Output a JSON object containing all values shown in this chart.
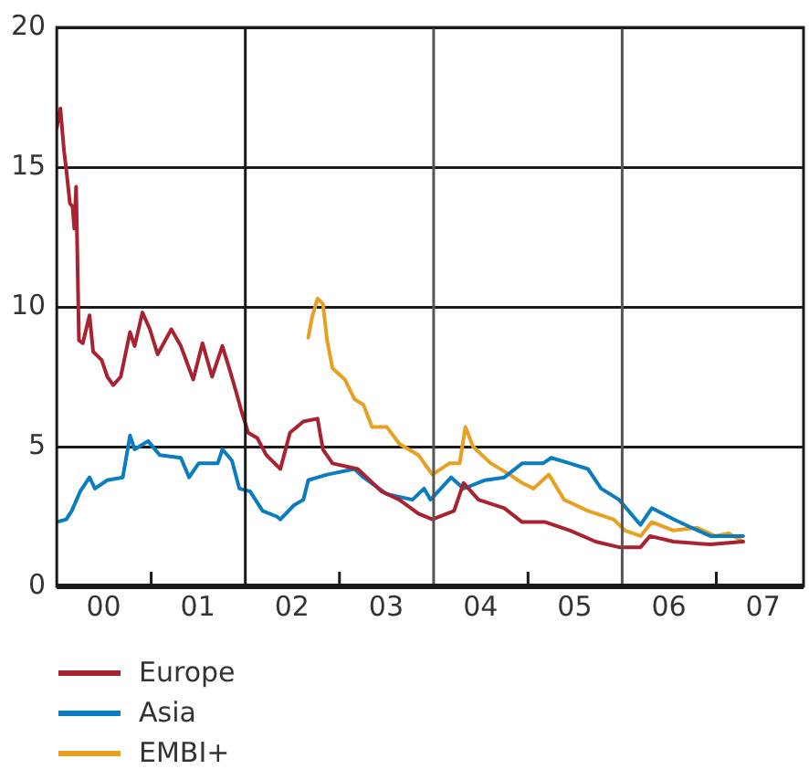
{
  "chart_data": {
    "type": "line",
    "xlim": [
      "2000-01-01",
      "2007-12-05"
    ],
    "xticks": [
      {
        "value": "2000-07-01",
        "label": "00"
      },
      {
        "value": "2001-01-01",
        "label": null
      },
      {
        "value": "2001-07-01",
        "label": "01"
      },
      {
        "value": "2002-07-01",
        "label": "02"
      },
      {
        "value": "2003-01-01",
        "label": null
      },
      {
        "value": "2003-07-01",
        "label": "03"
      },
      {
        "value": "2004-07-01",
        "label": "04"
      },
      {
        "value": "2005-01-01",
        "label": null
      },
      {
        "value": "2005-07-01",
        "label": "05"
      },
      {
        "value": "2006-07-01",
        "label": "06"
      },
      {
        "value": "2007-01-01",
        "label": null
      },
      {
        "value": "2007-07-01",
        "label": "07"
      }
    ],
    "ylim": [
      0,
      20
    ],
    "yticks": [
      0,
      5,
      10,
      15,
      20
    ],
    "grid": "y",
    "legend": "bottom left",
    "marker": "none",
    "line_style": "solid",
    "ref_lines": [
      {
        "axis": "x",
        "value": "2002-01-01",
        "color": "#1a1a1a"
      },
      {
        "axis": "x",
        "value": "2004-01-01",
        "color": "#555555"
      },
      {
        "axis": "x",
        "value": "2006-01-01",
        "color": "#555555"
      }
    ],
    "series": [
      {
        "name": "Europe",
        "color": "#a8232f",
        "x": [
          "2000-01-01",
          "2000-01-15",
          "2000-01-29",
          "2000-02-07",
          "2000-02-21",
          "2000-03-02",
          "2000-03-09",
          "2000-03-16",
          "2000-03-27",
          "2000-04-11",
          "2000-05-07",
          "2000-05-21",
          "2000-06-23",
          "2000-07-15",
          "2000-08-07",
          "2000-09-05",
          "2000-10-11",
          "2000-10-29",
          "2000-11-28",
          "2000-12-27",
          "2001-01-26",
          "2001-03-20",
          "2001-04-26",
          "2001-06-13",
          "2001-07-19",
          "2001-08-25",
          "2001-10-04",
          "2001-11-03",
          "2001-11-25",
          "2001-12-16",
          "2002-01-12",
          "2002-02-17",
          "2002-03-23",
          "2002-05-17",
          "2002-06-23",
          "2002-08-14",
          "2002-10-08",
          "2002-10-29",
          "2002-12-05",
          "2003-03-13",
          "2003-06-13",
          "2003-08-21",
          "2003-11-03",
          "2003-12-27",
          "2004-03-20",
          "2004-04-26",
          "2004-06-23",
          "2004-10-01",
          "2004-12-09",
          "2005-03-09",
          "2005-06-13",
          "2005-09-20",
          "2005-12-20",
          "2006-03-13",
          "2006-04-19",
          "2006-07-19",
          "2006-12-09",
          "2007-04-15"
        ],
        "values": [
          16.4,
          17.1,
          15.6,
          14.9,
          13.7,
          13.6,
          12.8,
          14.3,
          8.8,
          8.7,
          9.7,
          8.4,
          8.1,
          7.5,
          7.2,
          7.5,
          9.1,
          8.6,
          9.8,
          9.2,
          8.3,
          9.2,
          8.6,
          7.4,
          8.7,
          7.5,
          8.6,
          7.7,
          7.0,
          6.3,
          5.5,
          5.3,
          4.7,
          4.2,
          5.5,
          5.9,
          6.0,
          4.9,
          4.4,
          4.2,
          3.4,
          3.1,
          2.6,
          2.4,
          2.7,
          3.7,
          3.1,
          2.8,
          2.3,
          2.3,
          2.0,
          1.6,
          1.4,
          1.4,
          1.8,
          1.6,
          1.5,
          1.6
        ]
      },
      {
        "name": "Asia",
        "color": "#0a7cc1",
        "x": [
          "2000-01-01",
          "2000-02-07",
          "2000-02-28",
          "2000-04-01",
          "2000-05-07",
          "2000-05-28",
          "2000-07-15",
          "2000-09-13",
          "2000-10-11",
          "2000-10-29",
          "2000-12-20",
          "2001-02-03",
          "2001-04-26",
          "2001-05-28",
          "2001-07-04",
          "2001-09-16",
          "2001-10-04",
          "2001-11-10",
          "2001-12-09",
          "2002-01-19",
          "2002-03-09",
          "2002-05-03",
          "2002-05-17",
          "2002-07-08",
          "2002-08-14",
          "2002-09-02",
          "2002-11-14",
          "2003-02-28",
          "2003-04-04",
          "2003-07-04",
          "2003-10-11",
          "2003-11-25",
          "2003-12-20",
          "2004-03-09",
          "2004-04-26",
          "2004-07-19",
          "2004-10-01",
          "2004-12-09",
          "2005-02-28",
          "2005-04-01",
          "2005-06-13",
          "2005-08-21",
          "2005-10-11",
          "2005-12-20",
          "2006-03-13",
          "2006-04-26",
          "2006-07-19",
          "2006-09-27",
          "2006-12-09",
          "2007-04-15"
        ],
        "values": [
          2.3,
          2.4,
          2.7,
          3.4,
          3.9,
          3.5,
          3.8,
          3.9,
          5.4,
          4.9,
          5.2,
          4.7,
          4.6,
          3.9,
          4.4,
          4.4,
          4.9,
          4.5,
          3.5,
          3.4,
          2.7,
          2.5,
          2.4,
          2.9,
          3.1,
          3.8,
          4.0,
          4.2,
          3.9,
          3.3,
          3.1,
          3.5,
          3.1,
          3.9,
          3.5,
          3.8,
          3.9,
          4.4,
          4.4,
          4.6,
          4.4,
          4.2,
          3.5,
          3.1,
          2.2,
          2.8,
          2.4,
          2.1,
          1.8,
          1.8
        ]
      },
      {
        "name": "EMBI+",
        "color": "#e8a021",
        "x": [
          "2002-09-02",
          "2002-09-16",
          "2002-10-08",
          "2002-10-29",
          "2002-11-14",
          "2002-12-05",
          "2003-01-22",
          "2003-02-28",
          "2003-04-04",
          "2003-05-07",
          "2003-07-04",
          "2003-08-21",
          "2003-11-03",
          "2003-12-27",
          "2004-03-02",
          "2004-04-11",
          "2004-05-03",
          "2004-06-02",
          "2004-08-10",
          "2004-10-22",
          "2004-12-09",
          "2005-01-22",
          "2005-03-23",
          "2005-05-21",
          "2005-08-21",
          "2005-11-28",
          "2006-01-12",
          "2006-03-13",
          "2006-04-26",
          "2006-07-19",
          "2006-10-19",
          "2006-12-27",
          "2007-02-17",
          "2007-04-15"
        ],
        "values": [
          8.9,
          9.6,
          10.3,
          10.1,
          8.8,
          7.8,
          7.4,
          6.7,
          6.5,
          5.7,
          5.7,
          5.1,
          4.7,
          4.0,
          4.4,
          4.4,
          5.7,
          5.0,
          4.4,
          4.0,
          3.7,
          3.5,
          4.0,
          3.1,
          2.7,
          2.4,
          2.0,
          1.8,
          2.3,
          2.0,
          2.1,
          1.8,
          1.9,
          1.6
        ]
      }
    ]
  }
}
